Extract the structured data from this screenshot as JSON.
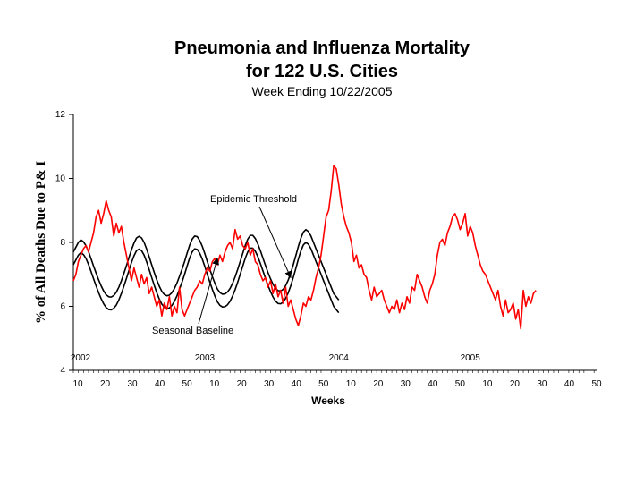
{
  "chart_data": {
    "type": "line",
    "title": "Pneumonia and Influenza Mortality",
    "title_line2": "for 122 U.S. Cities",
    "subtitle": "Week Ending 10/22/2005",
    "xlabel": "Weeks",
    "ylabel": "% of All Deaths Due to P& I",
    "ylim": [
      4,
      12
    ],
    "yticks": [
      4,
      6,
      8,
      10,
      12
    ],
    "x_tick_labels": [
      "10",
      "20",
      "30",
      "40",
      "50",
      "10",
      "20",
      "30",
      "40",
      "50",
      "10",
      "20",
      "30",
      "40",
      "50",
      "10",
      "20",
      "30",
      "40",
      "50"
    ],
    "year_labels": [
      {
        "label": "2002",
        "week": 1
      },
      {
        "label": "2003",
        "week": 53
      },
      {
        "label": "2004",
        "week": 106
      },
      {
        "label": "2005",
        "week": 158
      }
    ],
    "grid": false,
    "colors": {
      "observed": "#ff0000",
      "baseline": "#000000",
      "threshold": "#000000"
    },
    "annotations": [
      {
        "label": "Epidemic Threshold",
        "target_week": 87,
        "target_value": 6.9
      },
      {
        "label": "Seasonal Baseline",
        "target_week": 58,
        "target_value": 7.5
      }
    ],
    "series": [
      {
        "key": "observed",
        "start_week": 1,
        "values": [
          6.8,
          7.0,
          7.4,
          7.6,
          7.8,
          7.9,
          7.7,
          8.0,
          8.3,
          8.8,
          9.0,
          8.6,
          8.9,
          9.3,
          9.0,
          8.8,
          8.2,
          8.6,
          8.3,
          8.5,
          8.0,
          7.6,
          7.2,
          6.8,
          7.2,
          6.9,
          6.6,
          7.0,
          6.7,
          6.9,
          6.4,
          6.6,
          6.3,
          6.0,
          6.2,
          5.7,
          6.1,
          5.9,
          6.3,
          5.7,
          6.0,
          5.8,
          6.6,
          5.9,
          5.7,
          5.9,
          6.1,
          6.3,
          6.5,
          6.6,
          6.8,
          6.7,
          7.0,
          7.2,
          7.1,
          7.4,
          7.5,
          7.3,
          7.6,
          7.4,
          7.7,
          7.9,
          8.0,
          7.8,
          8.4,
          8.1,
          8.2,
          7.9,
          7.8,
          8.0,
          7.6,
          7.8,
          7.4,
          7.3,
          7.0,
          6.8,
          6.9,
          6.6,
          6.8,
          6.4,
          6.7,
          6.3,
          6.5,
          6.1,
          6.6,
          6.0,
          6.2,
          5.9,
          5.6,
          5.4,
          5.7,
          6.1,
          6.0,
          6.3,
          6.2,
          6.5,
          6.9,
          7.2,
          7.6,
          8.2,
          8.8,
          9.0,
          9.6,
          10.4,
          10.3,
          9.8,
          9.2,
          8.8,
          8.5,
          8.3,
          8.0,
          7.4,
          7.6,
          7.2,
          7.3,
          7.0,
          6.9,
          6.5,
          6.2,
          6.6,
          6.3,
          6.4,
          6.5,
          6.2,
          6.0,
          5.8,
          6.0,
          5.9,
          6.2,
          5.8,
          6.1,
          5.9,
          6.3,
          6.1,
          6.6,
          6.5,
          7.0,
          6.8,
          6.6,
          6.3,
          6.1,
          6.5,
          6.7,
          7.0,
          7.6,
          8.0,
          8.1,
          7.9,
          8.3,
          8.5,
          8.8,
          8.9,
          8.7,
          8.4,
          8.6,
          8.9,
          8.2,
          8.5,
          8.3,
          7.9,
          7.6,
          7.3,
          7.1,
          7.0,
          6.8,
          6.6,
          6.4,
          6.2,
          6.5,
          6.0,
          5.7,
          6.2,
          5.8,
          5.9,
          6.1,
          5.6,
          5.9,
          5.3,
          6.5,
          6.0,
          6.3,
          6.1,
          6.4,
          6.5
        ]
      },
      {
        "key": "threshold",
        "label": "Epidemic Threshold",
        "start_week": 1,
        "values": [
          7.7,
          7.85,
          8.0,
          8.08,
          8.02,
          7.9,
          7.71,
          7.49,
          7.26,
          7.04,
          6.83,
          6.64,
          6.48,
          6.36,
          6.3,
          6.29,
          6.34,
          6.44,
          6.6,
          6.8,
          7.03,
          7.27,
          7.52,
          7.77,
          7.98,
          8.14,
          8.19,
          8.14,
          8.0,
          7.79,
          7.55,
          7.3,
          7.06,
          6.83,
          6.63,
          6.47,
          6.37,
          6.33,
          6.35,
          6.43,
          6.56,
          6.73,
          6.94,
          7.16,
          7.4,
          7.66,
          7.91,
          8.1,
          8.2,
          8.18,
          8.06,
          7.88,
          7.65,
          7.4,
          7.16,
          6.93,
          6.72,
          6.54,
          6.43,
          6.38,
          6.39,
          6.45,
          6.56,
          6.72,
          6.92,
          7.15,
          7.4,
          7.65,
          7.9,
          8.1,
          8.22,
          8.22,
          8.12,
          7.95,
          7.74,
          7.51,
          7.28,
          7.06,
          6.86,
          6.69,
          6.56,
          6.49,
          6.48,
          6.53,
          6.65,
          6.82,
          7.04,
          7.3,
          7.58,
          7.87,
          8.13,
          8.32,
          8.4,
          8.34,
          8.2,
          8.0,
          7.8,
          7.6,
          7.4,
          7.2,
          7.0,
          6.8,
          6.6,
          6.4,
          6.3,
          6.2
        ]
      },
      {
        "key": "baseline",
        "label": "Seasonal Baseline",
        "start_week": 1,
        "values": [
          7.3,
          7.45,
          7.6,
          7.68,
          7.62,
          7.5,
          7.31,
          7.09,
          6.86,
          6.64,
          6.43,
          6.24,
          6.08,
          5.96,
          5.9,
          5.89,
          5.94,
          6.04,
          6.2,
          6.4,
          6.63,
          6.87,
          7.12,
          7.37,
          7.58,
          7.74,
          7.79,
          7.74,
          7.6,
          7.39,
          7.15,
          6.9,
          6.66,
          6.43,
          6.23,
          6.07,
          5.97,
          5.93,
          5.95,
          6.03,
          6.16,
          6.33,
          6.54,
          6.76,
          7.0,
          7.26,
          7.51,
          7.7,
          7.8,
          7.78,
          7.66,
          7.48,
          7.25,
          7.0,
          6.76,
          6.53,
          6.32,
          6.14,
          6.03,
          5.98,
          5.99,
          6.05,
          6.16,
          6.32,
          6.52,
          6.75,
          7.0,
          7.25,
          7.5,
          7.7,
          7.82,
          7.82,
          7.72,
          7.55,
          7.34,
          7.11,
          6.88,
          6.66,
          6.46,
          6.29,
          6.16,
          6.09,
          6.08,
          6.13,
          6.25,
          6.42,
          6.64,
          6.9,
          7.18,
          7.47,
          7.73,
          7.92,
          8.0,
          7.94,
          7.8,
          7.6,
          7.4,
          7.2,
          7.0,
          6.8,
          6.6,
          6.4,
          6.2,
          6.0,
          5.9,
          5.8
        ]
      }
    ]
  }
}
